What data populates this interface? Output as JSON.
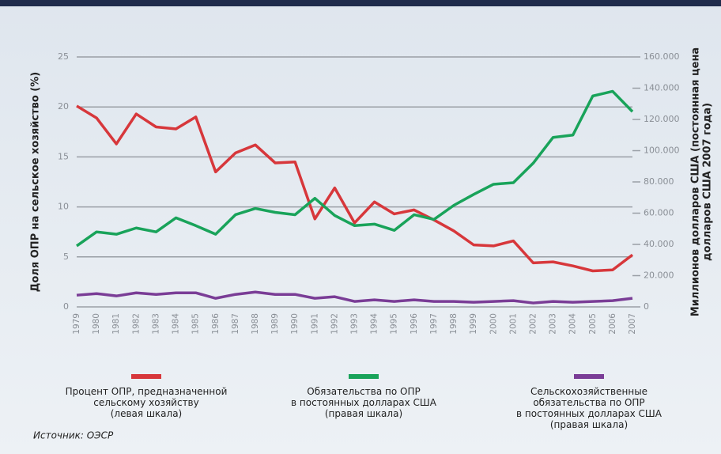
{
  "chart_data": {
    "type": "line",
    "ylabel": "Доля ОПР на сельское хозяйство (%)",
    "y2label": "Миллионов долларов США (постоянная цена\nдолларов США 2007 года)",
    "source": "Источник: ОЭСР",
    "categories": [
      "1979",
      "1980",
      "1981",
      "1982",
      "1983",
      "1984",
      "1985",
      "1986",
      "1987",
      "1988",
      "1989",
      "1990",
      "1991",
      "1992",
      "1993",
      "1994",
      "1995",
      "1996",
      "1997",
      "1998",
      "1999",
      "2000",
      "2001",
      "2002",
      "2003",
      "2004",
      "2005",
      "2006",
      "2007"
    ],
    "ylim": [
      0,
      25
    ],
    "yticks": [
      0,
      5,
      10,
      15,
      20,
      25
    ],
    "y2lim": [
      0,
      160000
    ],
    "y2ticks": [
      0,
      {
        "value": 20000,
        "label": "20.000"
      },
      {
        "value": 40000,
        "label": "40.000"
      },
      {
        "value": 60000,
        "label": "60.000"
      },
      {
        "value": 80000,
        "label": "80.000"
      },
      {
        "value": 100000,
        "label": "100.000"
      },
      {
        "value": 120000,
        "label": "120.000"
      },
      {
        "value": 140000,
        "label": "140.000"
      },
      {
        "value": 160000,
        "label": "160.000"
      }
    ],
    "grid": true,
    "series": [
      {
        "name": "Процент ОПР, предназначенной\nсельскому хозяйству\n(левая шкала)",
        "color": "#d7373b",
        "axis": "y",
        "values": [
          20.1,
          18.9,
          16.3,
          19.3,
          18.0,
          17.8,
          19.0,
          13.5,
          15.4,
          16.2,
          14.4,
          14.5,
          8.8,
          11.9,
          8.4,
          10.5,
          9.3,
          9.7,
          8.7,
          7.6,
          6.2,
          6.1,
          6.6,
          4.4,
          4.5,
          4.1,
          3.6,
          3.7,
          5.2
        ]
      },
      {
        "name": "Обязательства по ОПР\nв постоянных долларах США\n(правая шкала)",
        "color": "#19a35a",
        "axis": "y2",
        "values": [
          39000,
          48000,
          46500,
          50500,
          48000,
          57000,
          52000,
          46500,
          59000,
          63000,
          60500,
          59000,
          69500,
          58500,
          52000,
          53000,
          49000,
          59000,
          56000,
          65000,
          72000,
          78500,
          79500,
          92000,
          108500,
          110000,
          135000,
          138000,
          125000
        ]
      },
      {
        "name": "Сельскохозяйственные\nобязательства по ОПР\nв постоянных долларах США\n(правая шкала)",
        "color": "#7a3d96",
        "axis": "y2",
        "values": [
          7500,
          8500,
          7000,
          9000,
          8000,
          9000,
          9000,
          5500,
          8000,
          9500,
          8000,
          8000,
          5500,
          6500,
          3500,
          4500,
          3500,
          4500,
          3500,
          3500,
          3000,
          3500,
          4000,
          2500,
          3500,
          3000,
          3500,
          4000,
          5500
        ]
      }
    ]
  }
}
